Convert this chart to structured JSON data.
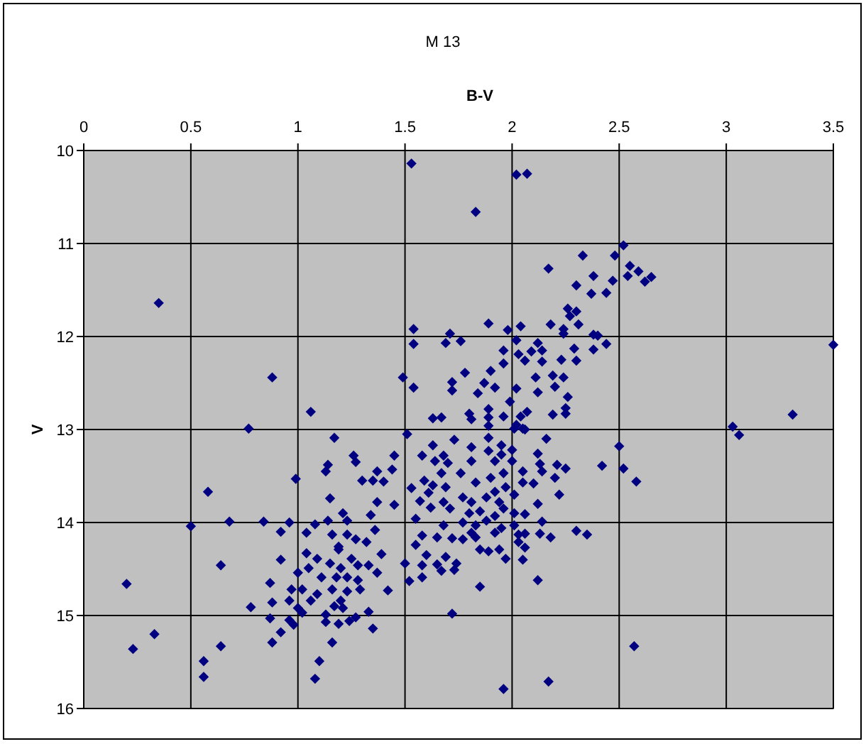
{
  "chart_data": {
    "type": "scatter",
    "title": "M 13",
    "xlabel": "B-V",
    "ylabel": "V",
    "color": "#000080",
    "marker": "diamond",
    "grid": true,
    "xlim": [
      0,
      3.5
    ],
    "xticks": [
      0,
      0.5,
      1,
      1.5,
      2,
      2.5,
      3,
      3.5
    ],
    "ylim": [
      16,
      10
    ],
    "yticks": [
      10,
      11,
      12,
      13,
      14,
      15,
      16
    ],
    "x": [
      0.35,
      0.88,
      1.06,
      0.77,
      1.53,
      2.02,
      2.07,
      1.83,
      2.33,
      2.17,
      2.38,
      2.3,
      2.37,
      2.26,
      2.3,
      2.27,
      1.89,
      1.54,
      2.04,
      2.18,
      2.24,
      2.31,
      1.71,
      1.54,
      1.69,
      1.76,
      1.98,
      2.02,
      2.24,
      2.38,
      2.38,
      2.12,
      2.14,
      2.29,
      1.96,
      2.03,
      2.09,
      2.23,
      2.3,
      2.14,
      1.49,
      1.78,
      1.9,
      1.96,
      2.06,
      2.11,
      2.19,
      2.24,
      1.54,
      1.72,
      1.72,
      1.87,
      1.92,
      2.02,
      2.2,
      1.84,
      2.12,
      2.26,
      1.99,
      1.89,
      2.25,
      2.25,
      2.19,
      1.63,
      1.67,
      1.8,
      1.81,
      1.89,
      1.96,
      2.04,
      2.07,
      1.89,
      2.02,
      2.05,
      2.52,
      2.48,
      2.55,
      2.59,
      2.54,
      2.65,
      2.62,
      2.47,
      2.44,
      2.44,
      3.5,
      3.31,
      3.03,
      3.06,
      2.5,
      2.42,
      2.52,
      2.58,
      2.57,
      2.4,
      1.17,
      1.14,
      1.13,
      0.99,
      0.58,
      1.15,
      0.5,
      0.68,
      0.84,
      0.96,
      0.92,
      1.04,
      1.08,
      1.14,
      1.16,
      0.64,
      0.92,
      1.04,
      0.2,
      0.87,
      0.78,
      0.88,
      0.87,
      0.92,
      0.88,
      0.96,
      0.98,
      0.33,
      0.23,
      0.64,
      0.56,
      0.56,
      1.1,
      1.08,
      1.16,
      1.13,
      1.19,
      1,
      1.02,
      1,
      1.06,
      1.11,
      1.15,
      1.16,
      1.09,
      1.05,
      0.97,
      0.96,
      1.19,
      1.13,
      1.17,
      1.02,
      1.09,
      1.26,
      1.27,
      1.45,
      1.37,
      1.44,
      1.3,
      1.35,
      1.4,
      1.37,
      1.45,
      1.21,
      1.23,
      1.34,
      1.36,
      1.23,
      1.27,
      1.32,
      1.19,
      1.39,
      1.25,
      1.28,
      1.33,
      1.37,
      1.2,
      1.18,
      1.23,
      1.28,
      1.23,
      1.29,
      1.42,
      1.2,
      1.21,
      1.33,
      1.27,
      1.24,
      1.35,
      1.51,
      1.73,
      1.63,
      1.81,
      1.89,
      1.89,
      1.58,
      1.68,
      1.64,
      1.7,
      1.81,
      1.95,
      2,
      2.12,
      2.16,
      2,
      2.13,
      2.21,
      2.25,
      2.14,
      2.05,
      1.76,
      1.67,
      1.59,
      1.53,
      1.63,
      1.69,
      1.83,
      1.9,
      1.96,
      2.05,
      2.1,
      2.2,
      2.22,
      2.01,
      1.77,
      1.61,
      1.57,
      1.68,
      1.81,
      1.88,
      1.94,
      1.62,
      1.71,
      1.8,
      1.85,
      1.92,
      2.01,
      2.06,
      2.12,
      1.55,
      2.14,
      1.68,
      1.83,
      1.77,
      2.01,
      1.58,
      1.65,
      1.72,
      1.83,
      1.92,
      2.03,
      2.06,
      2.13,
      2.18,
      2.3,
      2.35,
      1.77,
      2.03,
      1.55,
      1.85,
      1.89,
      1.94,
      2.06,
      1.6,
      1.69,
      1.97,
      2.05,
      1.5,
      1.58,
      1.65,
      1.74,
      1.67,
      1.73,
      1.52,
      1.58,
      2.12,
      1.85,
      1.72,
      1.96,
      2.17,
      1.92,
      1.96,
      1.88,
      1.81,
      1.95,
      1.97,
      1.92,
      1.95,
      2.01,
      2.06
    ],
    "values": [
      11.64,
      12.44,
      12.81,
      12.99,
      10.14,
      10.26,
      10.25,
      10.66,
      11.13,
      11.27,
      11.35,
      11.45,
      11.54,
      11.7,
      11.73,
      11.78,
      11.86,
      11.92,
      11.89,
      11.87,
      11.92,
      11.87,
      11.97,
      12.08,
      12.07,
      12.05,
      11.93,
      12.04,
      11.97,
      11.98,
      12.14,
      12.07,
      12.15,
      12.13,
      12.15,
      12.19,
      12.16,
      12.25,
      12.26,
      12.27,
      12.44,
      12.39,
      12.37,
      12.29,
      12.26,
      12.44,
      12.42,
      12.44,
      12.55,
      12.49,
      12.58,
      12.5,
      12.55,
      12.56,
      12.54,
      12.61,
      12.6,
      12.65,
      12.7,
      12.78,
      12.77,
      12.83,
      12.84,
      12.88,
      12.87,
      12.83,
      12.89,
      12.87,
      12.86,
      12.86,
      12.81,
      12.96,
      12.95,
      12.99,
      11.02,
      11.13,
      11.24,
      11.3,
      11.35,
      11.36,
      11.41,
      11.4,
      11.53,
      12.08,
      12.09,
      12.84,
      12.97,
      13.06,
      13.18,
      13.39,
      13.42,
      13.56,
      15.33,
      11.99,
      13.09,
      13.38,
      13.45,
      13.53,
      13.67,
      13.74,
      14.04,
      13.99,
      13.99,
      14,
      14.1,
      14.11,
      14.02,
      13.98,
      14.13,
      14.46,
      14.4,
      14.33,
      14.66,
      14.65,
      14.91,
      14.86,
      15.03,
      15.18,
      15.29,
      15.05,
      15.1,
      15.2,
      15.36,
      15.33,
      15.49,
      15.66,
      15.49,
      15.68,
      15.29,
      15.07,
      15.09,
      14.54,
      14.72,
      14.92,
      14.84,
      14.59,
      14.44,
      14.72,
      14.77,
      14.49,
      14.72,
      14.84,
      14.29,
      14.99,
      14.9,
      14.97,
      14.39,
      13.28,
      13.35,
      13.28,
      13.45,
      13.43,
      13.55,
      13.55,
      13.56,
      13.78,
      13.81,
      13.9,
      13.98,
      13.92,
      14.08,
      14.13,
      14.18,
      14.21,
      14.26,
      14.34,
      14.39,
      14.46,
      14.46,
      14.54,
      14.49,
      14.59,
      14.59,
      14.62,
      14.74,
      14.72,
      14.73,
      14.84,
      14.92,
      14.96,
      15.02,
      15.06,
      15.14,
      13.05,
      13.11,
      13.17,
      13.19,
      13.09,
      13.23,
      13.28,
      13.28,
      13.34,
      13.36,
      13.34,
      13.17,
      13.22,
      13.26,
      13.1,
      13.34,
      13.37,
      13.38,
      13.42,
      13.45,
      13.45,
      13.47,
      13.47,
      13.55,
      13.63,
      13.6,
      13.62,
      13.57,
      13.52,
      13.47,
      13.57,
      13.58,
      13.52,
      13.7,
      13.7,
      13.73,
      13.68,
      13.77,
      13.78,
      13.78,
      13.73,
      13.78,
      13.84,
      13.85,
      13.9,
      13.88,
      13.93,
      13.9,
      13.91,
      13.8,
      13.96,
      13.99,
      14.03,
      14.03,
      14,
      14.03,
      14.14,
      14.16,
      14.17,
      14.16,
      14.11,
      14.13,
      14.12,
      14.12,
      14.16,
      14.09,
      14.13,
      14.18,
      14.21,
      14.24,
      14.29,
      14.31,
      14.29,
      14.27,
      14.35,
      14.37,
      14.39,
      14.4,
      14.44,
      14.46,
      14.45,
      14.44,
      14.52,
      14.51,
      14.63,
      14.59,
      14.62,
      14.69,
      14.98,
      15.79,
      15.71,
      13.67,
      13.85,
      13.98,
      14.11,
      14.06,
      13.62,
      13.34,
      13.27,
      12.99,
      13
    ]
  }
}
